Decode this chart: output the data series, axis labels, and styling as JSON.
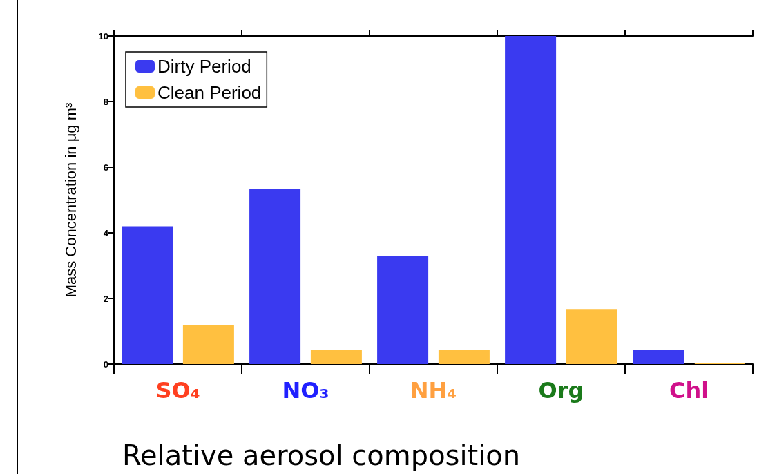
{
  "chart_data": {
    "type": "bar",
    "title": "Relative aerosol composition",
    "ylabel": "Mass Concentration in μg m³",
    "categories": [
      "SO₄",
      "NO₃",
      "NH₄",
      "Org",
      "Chl"
    ],
    "series": [
      {
        "name": "Dirty Period",
        "color": "#3a3af0",
        "values": [
          4.2,
          5.35,
          3.3,
          10.0,
          0.42
        ]
      },
      {
        "name": "Clean Period",
        "color": "#ffc040",
        "values": [
          1.18,
          0.44,
          0.44,
          1.68,
          0.04
        ]
      }
    ],
    "ylim": [
      0,
      10
    ],
    "yticks": [
      0,
      2,
      4,
      6,
      8,
      10
    ],
    "grid": false,
    "legend": "top left"
  }
}
